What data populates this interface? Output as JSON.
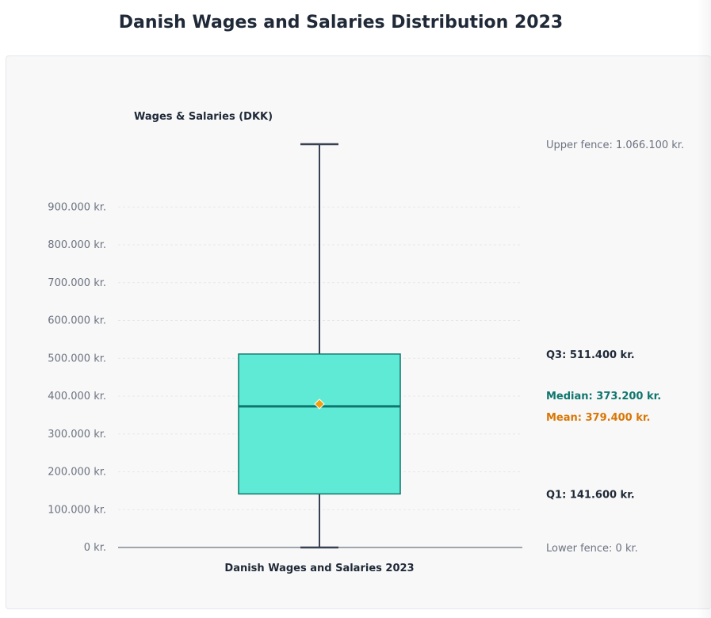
{
  "page_title": "Danish Wages and Salaries Distribution 2023",
  "colors": {
    "box_fill": "#5eead4",
    "box_stroke": "#0f766e",
    "median": "#0f766e",
    "mean": "#f59e0b",
    "mean_text": "#d97706",
    "whisker": "#374151",
    "axis_text": "#6b7280",
    "label_dark": "#1f2937"
  },
  "chart_data": {
    "type": "boxplot",
    "series_title": "Wages & Salaries (DKK)",
    "category": "Danish Wages and Salaries 2023",
    "ylim": [
      0,
      1066100
    ],
    "y_ticks": [
      {
        "value": 0,
        "label": "0 kr."
      },
      {
        "value": 100000,
        "label": "100.000 kr."
      },
      {
        "value": 200000,
        "label": "200.000 kr."
      },
      {
        "value": 300000,
        "label": "300.000 kr."
      },
      {
        "value": 400000,
        "label": "400.000 kr."
      },
      {
        "value": 500000,
        "label": "500.000 kr."
      },
      {
        "value": 600000,
        "label": "600.000 kr."
      },
      {
        "value": 700000,
        "label": "700.000 kr."
      },
      {
        "value": 800000,
        "label": "800.000 kr."
      },
      {
        "value": 900000,
        "label": "900.000 kr."
      }
    ],
    "lower_fence": 0,
    "q1": 141600,
    "median": 373200,
    "mean": 379400,
    "q3": 511400,
    "upper_fence": 1066100,
    "annotations": {
      "upper_fence": "Upper fence: 1.066.100 kr.",
      "q3": "Q3: 511.400 kr.",
      "median": "Median: 373.200 kr.",
      "mean": "Mean: 379.400 kr.",
      "q1": "Q1: 141.600 kr.",
      "lower_fence": "Lower fence: 0 kr."
    }
  }
}
